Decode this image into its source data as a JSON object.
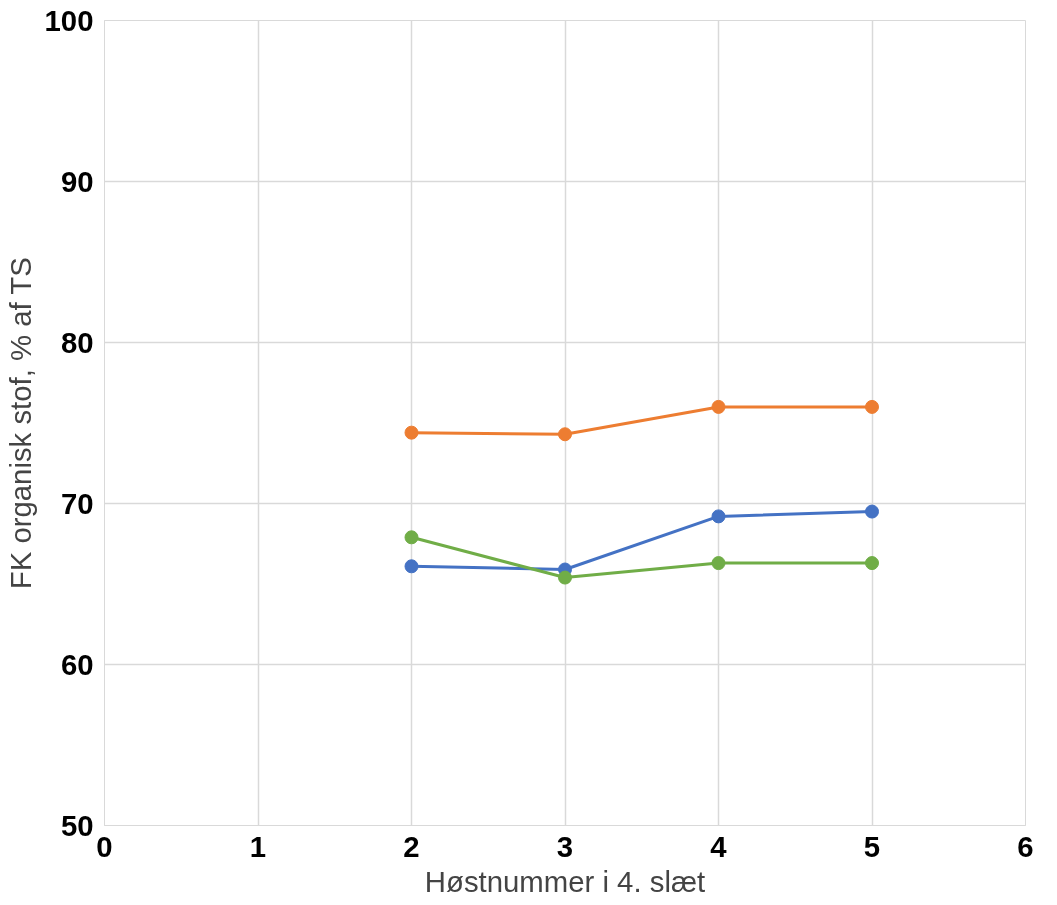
{
  "chart_data": {
    "type": "line",
    "xlabel": "Høstnummer i 4. slæt",
    "ylabel": "FK organisk stof, % af TS",
    "xlim": [
      0,
      6
    ],
    "xticks": [
      0,
      1,
      2,
      3,
      4,
      5,
      6
    ],
    "ylim": [
      50,
      100
    ],
    "yticks": [
      50,
      60,
      70,
      80,
      90,
      100
    ],
    "grid": true,
    "marker": "circle",
    "line_style": "solid",
    "series": [
      {
        "color": "#ed7d31",
        "x": [
          2,
          3,
          4,
          5
        ],
        "values": [
          74.4,
          74.3,
          76.0,
          76.0
        ]
      },
      {
        "color": "#4472c4",
        "x": [
          2,
          3,
          4,
          5
        ],
        "values": [
          66.1,
          65.9,
          69.2,
          69.5
        ]
      },
      {
        "color": "#70ad47",
        "x": [
          2,
          3,
          4,
          5
        ],
        "values": [
          67.9,
          65.4,
          66.3,
          66.3
        ]
      }
    ]
  }
}
